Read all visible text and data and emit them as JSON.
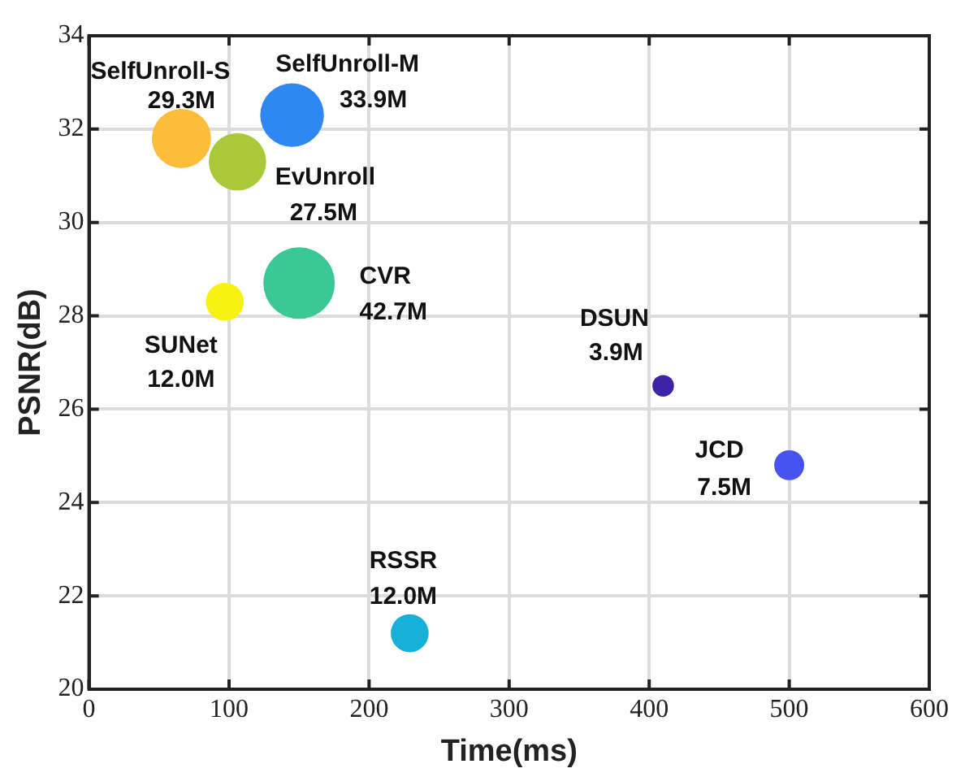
{
  "chart_data": {
    "type": "bubble",
    "xlabel": "Time(ms)",
    "ylabel": "PSNR(dB)",
    "xlim": [
      0,
      600
    ],
    "xticks": [
      0,
      100,
      200,
      300,
      400,
      500,
      600
    ],
    "ylim": [
      20,
      34
    ],
    "yticks": [
      20,
      22,
      24,
      26,
      28,
      30,
      32,
      34
    ],
    "grid": true,
    "legend": false,
    "series": [
      {
        "name": "SelfUnroll-S",
        "color": "#fdbc3a",
        "x": [
          66
        ],
        "values": [
          31.8
        ],
        "sizes": [
          0.686
        ]
      },
      {
        "name": "SelfUnroll-M",
        "color": "#2f87f2",
        "x": [
          145
        ],
        "values": [
          32.3
        ],
        "sizes": [
          0.794
        ]
      },
      {
        "name": "EvUnroll",
        "color": "#a9c83a",
        "x": [
          106
        ],
        "values": [
          31.3
        ],
        "sizes": [
          0.644
        ]
      },
      {
        "name": "CVR",
        "color": "#3cc896",
        "x": [
          150
        ],
        "values": [
          28.7
        ],
        "sizes": [
          1
        ]
      },
      {
        "name": "SUNet",
        "color": "#f8f213",
        "x": [
          97
        ],
        "values": [
          28.3
        ],
        "sizes": [
          0.281
        ]
      },
      {
        "name": "DSUN",
        "color": "#3b24a8",
        "x": [
          410
        ],
        "values": [
          26.5
        ],
        "sizes": [
          0.091
        ]
      },
      {
        "name": "JCD",
        "color": "#4653f0",
        "x": [
          500
        ],
        "values": [
          24.8
        ],
        "sizes": [
          0.176
        ]
      },
      {
        "name": "RSSR",
        "color": "#17b0d8",
        "x": [
          229
        ],
        "values": [
          21.2
        ],
        "sizes": [
          0.281
        ]
      }
    ],
    "annotations": [
      {
        "text": "29.3M",
        "x": 66,
        "y": 31.8
      },
      {
        "text": "33.9M",
        "x": 145,
        "y": 32.3
      },
      {
        "text": "27.5M",
        "x": 106,
        "y": 31.3
      },
      {
        "text": "42.7M",
        "x": 150,
        "y": 28.7
      },
      {
        "text": "12.0M",
        "x": 97,
        "y": 28.3
      },
      {
        "text": "3.9M",
        "x": 410,
        "y": 26.5
      },
      {
        "text": "7.5M",
        "x": 500,
        "y": 24.8
      },
      {
        "text": "12.0M",
        "x": 229,
        "y": 21.2
      }
    ]
  }
}
